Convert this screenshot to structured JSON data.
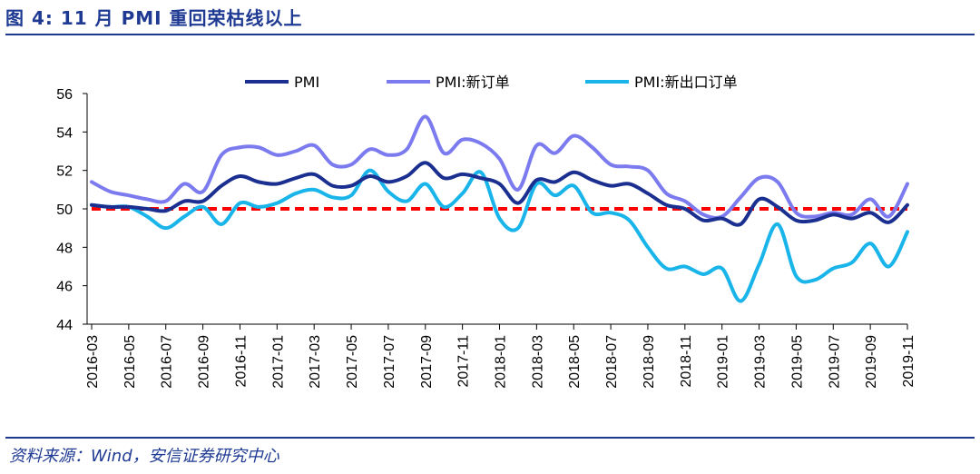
{
  "figure": {
    "title": "图 4: 11 月 PMI 重回荣枯线以上",
    "source": "资料来源：Wind，安信证券研究中心"
  },
  "colors": {
    "pmi": "#1a2f8f",
    "pmi_new_orders": "#7b7bef",
    "pmi_new_export_orders": "#19b4ea",
    "reference_line": "#ff0000",
    "title": "#1f3a93"
  },
  "chart_data": {
    "type": "line",
    "title": "",
    "xlabel": "",
    "ylabel": "",
    "ylim": [
      44,
      56
    ],
    "yticks": [
      44,
      46,
      48,
      50,
      52,
      54,
      56
    ],
    "grid": false,
    "legend_position": "top",
    "x": [
      "2016-03",
      "2016-04",
      "2016-05",
      "2016-06",
      "2016-07",
      "2016-08",
      "2016-09",
      "2016-10",
      "2016-11",
      "2016-12",
      "2017-01",
      "2017-02",
      "2017-03",
      "2017-04",
      "2017-05",
      "2017-06",
      "2017-07",
      "2017-08",
      "2017-09",
      "2017-10",
      "2017-11",
      "2017-12",
      "2018-01",
      "2018-02",
      "2018-03",
      "2018-04",
      "2018-05",
      "2018-06",
      "2018-07",
      "2018-08",
      "2018-09",
      "2018-10",
      "2018-11",
      "2018-12",
      "2019-01",
      "2019-02",
      "2019-03",
      "2019-04",
      "2019-05",
      "2019-06",
      "2019-07",
      "2019-08",
      "2019-09",
      "2019-10",
      "2019-11"
    ],
    "x_tick_labels": [
      "2016-03",
      "2016-05",
      "2016-07",
      "2016-09",
      "2016-11",
      "2017-01",
      "2017-03",
      "2017-05",
      "2017-07",
      "2017-09",
      "2017-11",
      "2018-01",
      "2018-03",
      "2018-05",
      "2018-07",
      "2018-09",
      "2018-11",
      "2019-01",
      "2019-03",
      "2019-05",
      "2019-07",
      "2019-09",
      "2019-11"
    ],
    "series": [
      {
        "name": "PMI",
        "values": [
          50.2,
          50.1,
          50.1,
          50.0,
          49.9,
          50.4,
          50.4,
          51.2,
          51.7,
          51.4,
          51.3,
          51.6,
          51.8,
          51.2,
          51.2,
          51.7,
          51.4,
          51.7,
          52.4,
          51.6,
          51.8,
          51.6,
          51.3,
          50.3,
          51.5,
          51.4,
          51.9,
          51.5,
          51.2,
          51.3,
          50.8,
          50.2,
          50.0,
          49.4,
          49.5,
          49.2,
          50.5,
          50.1,
          49.4,
          49.4,
          49.7,
          49.5,
          49.8,
          49.3,
          50.2
        ]
      },
      {
        "name": "PMI:新订单",
        "values": [
          51.4,
          50.9,
          50.7,
          50.5,
          50.4,
          51.3,
          50.9,
          52.8,
          53.2,
          53.2,
          52.8,
          53.0,
          53.3,
          52.3,
          52.3,
          53.1,
          52.8,
          53.1,
          54.8,
          52.9,
          53.6,
          53.4,
          52.6,
          51.0,
          53.3,
          52.9,
          53.8,
          53.2,
          52.3,
          52.2,
          52.0,
          50.8,
          50.4,
          49.7,
          49.6,
          50.6,
          51.6,
          51.4,
          49.8,
          49.6,
          49.8,
          49.7,
          50.5,
          49.6,
          51.3
        ]
      },
      {
        "name": "PMI:新出口订单",
        "values": [
          50.2,
          50.1,
          50.1,
          49.6,
          49.0,
          49.6,
          50.1,
          49.2,
          50.3,
          50.1,
          50.3,
          50.8,
          51.0,
          50.6,
          50.7,
          52.0,
          50.9,
          50.4,
          51.3,
          50.1,
          50.8,
          51.9,
          49.5,
          49.0,
          51.3,
          50.7,
          51.2,
          49.8,
          49.8,
          49.4,
          48.0,
          46.9,
          47.0,
          46.6,
          46.9,
          45.2,
          47.1,
          49.2,
          46.5,
          46.3,
          46.9,
          47.2,
          48.2,
          47.0,
          48.8
        ]
      }
    ],
    "reference_line": {
      "value": 50,
      "style": "dashed"
    }
  }
}
